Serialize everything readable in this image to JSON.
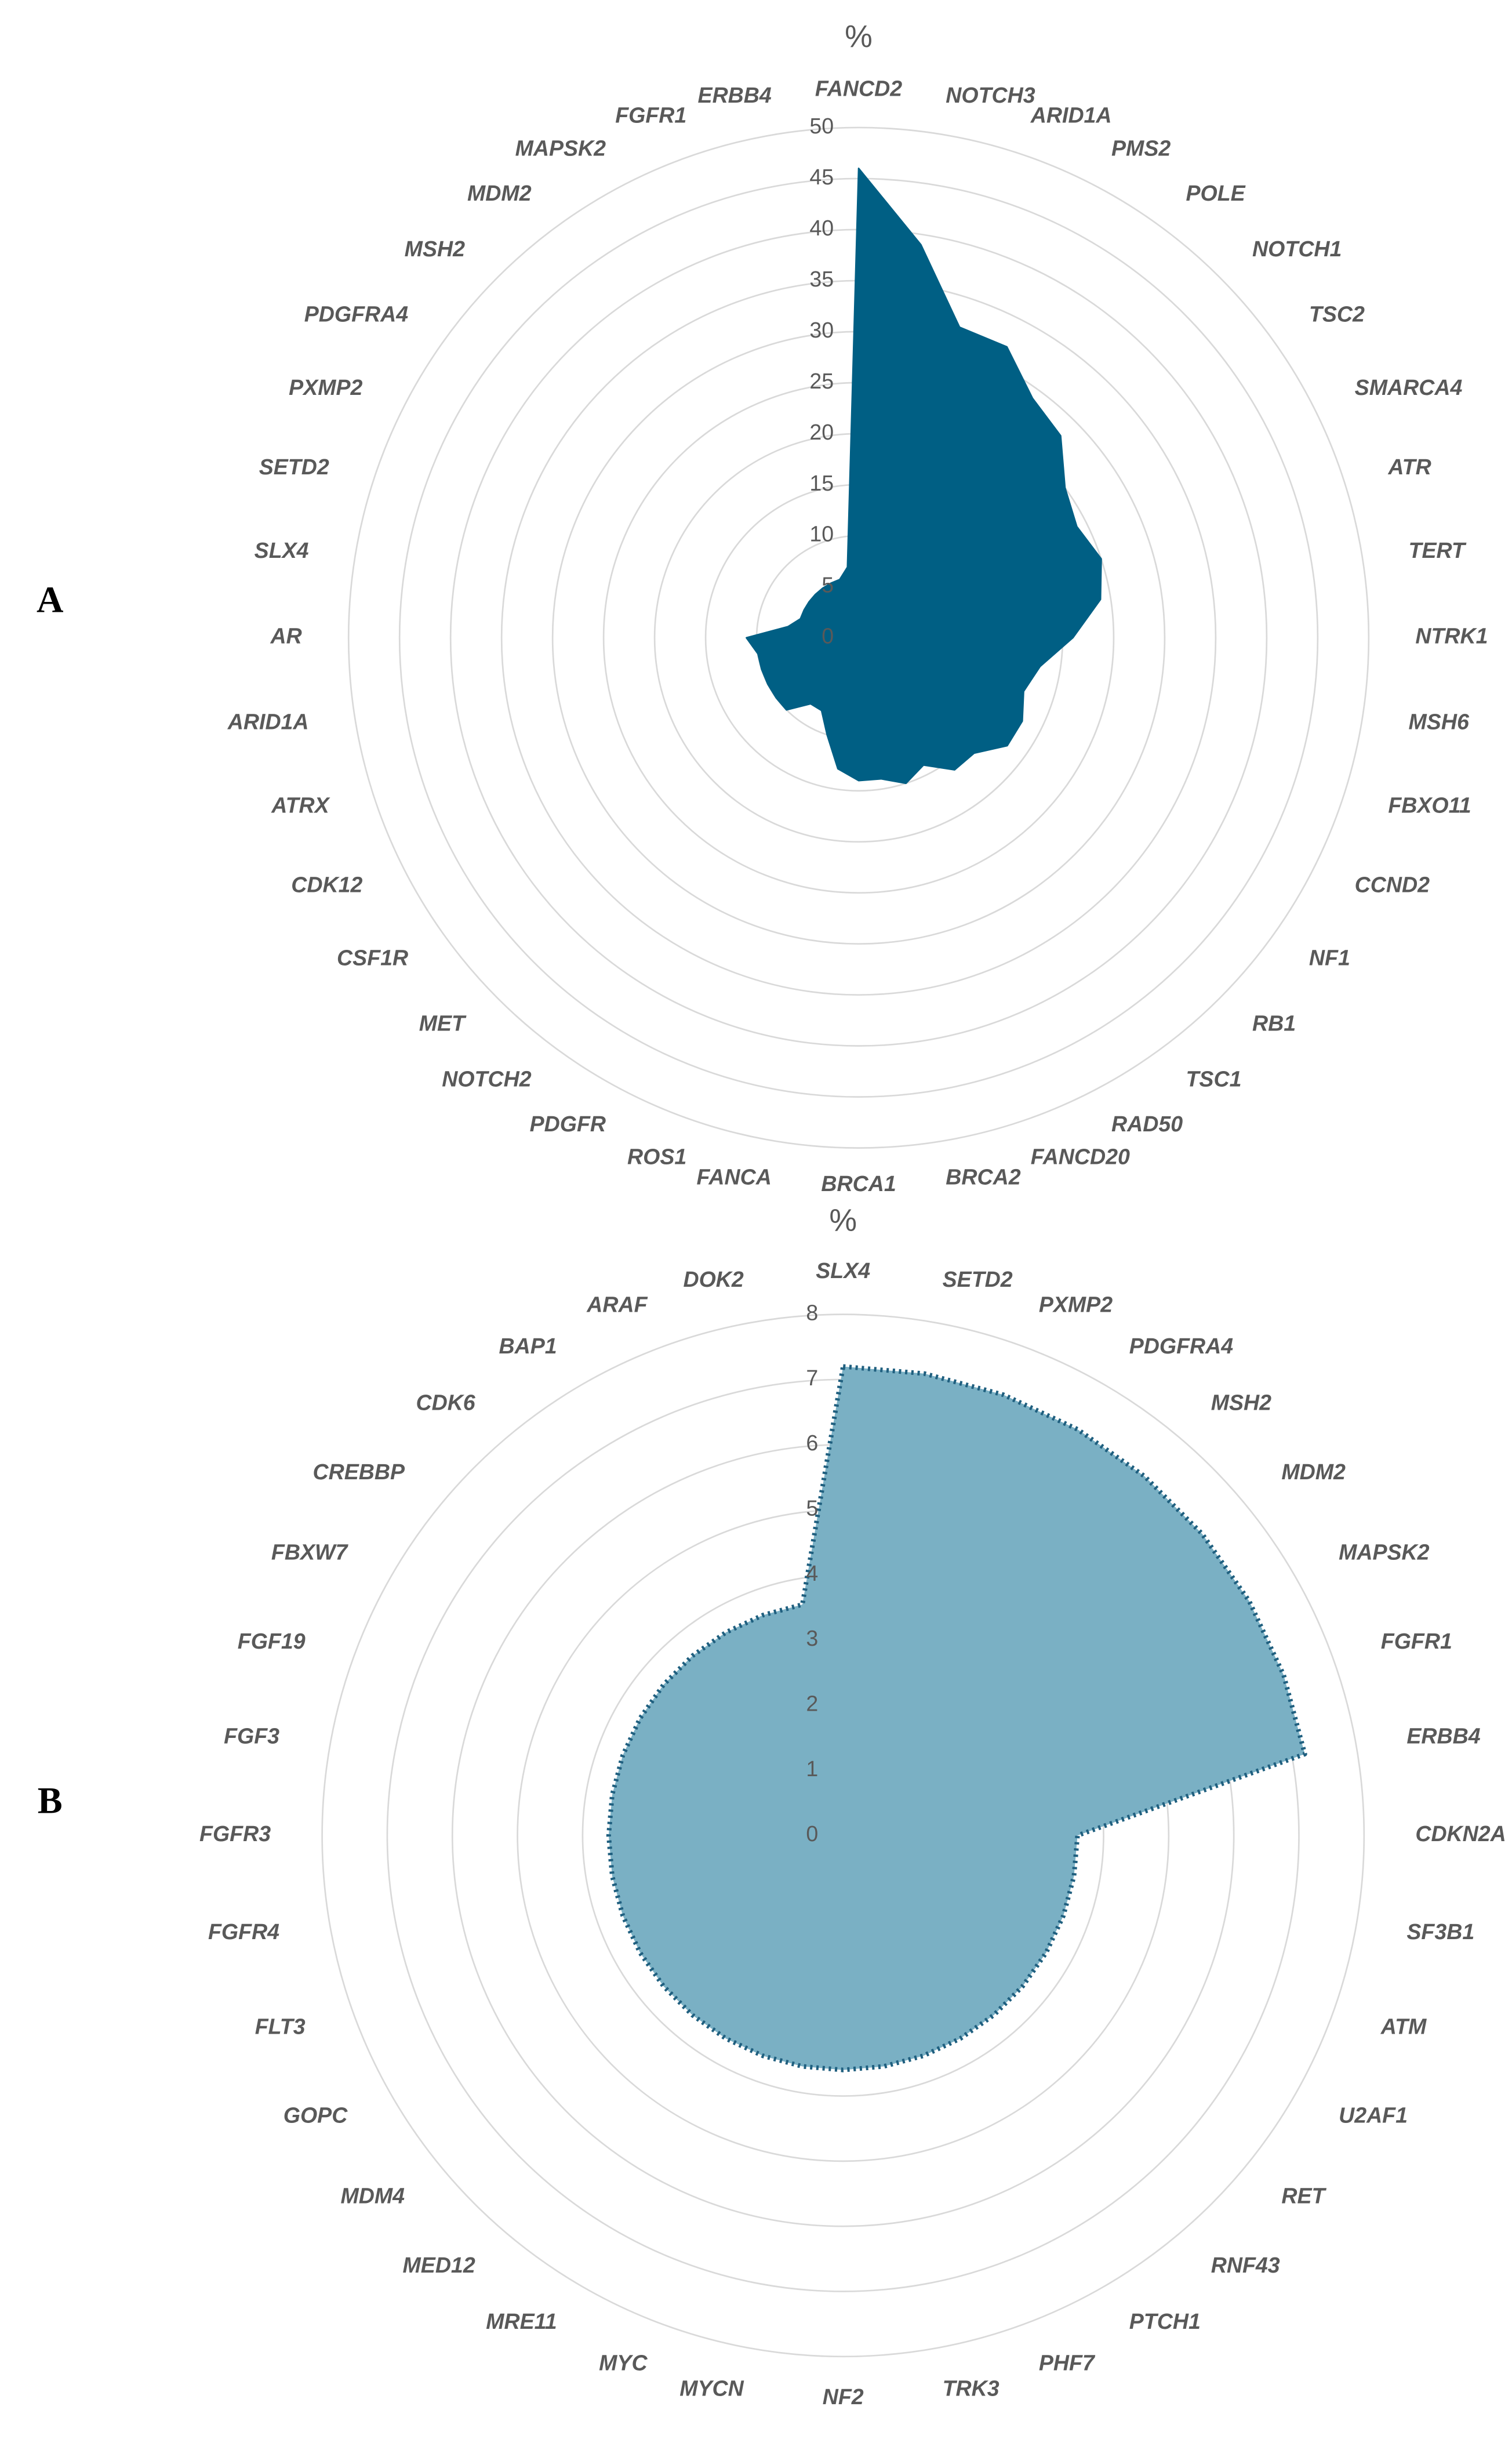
{
  "chart_data": [
    {
      "type": "radar",
      "panel": "A",
      "axis_label": "%",
      "categories": [
        "FANCD2",
        "NOTCH3",
        "ARID1A",
        "PMS2",
        "POLE",
        "NOTCH1",
        "TSC2",
        "SMARCA4",
        "ATR",
        "TERT",
        "NTRK1",
        "MSH6",
        "FBXO11",
        "CCND2",
        "NF1",
        "RB1",
        "TSC1",
        "RAD50",
        "FANCD20",
        "BRCA2",
        "BRCA1",
        "FANCA",
        "ROS1",
        "PDGFR",
        "NOTCH2",
        "MET",
        "CSF1R",
        "CDK12",
        "ATRX",
        "ARID1A",
        "AR",
        "SLX4",
        "SETD2",
        "PXMP2",
        "PDGFRA4",
        "MSH2",
        "MDM2",
        "MAPSK2",
        "FGFR1",
        "ERBB4"
      ],
      "values": [
        46,
        39,
        32,
        32,
        29,
        28,
        25,
        24,
        25,
        24,
        21,
        18,
        17,
        18,
        18,
        16,
        16,
        14,
        15,
        14,
        14,
        13,
        10,
        8,
        8,
        10,
        10,
        10,
        10,
        10,
        11,
        7,
        6,
        6,
        6,
        6,
        6,
        6,
        6,
        7
      ],
      "color": "#005f84",
      "border_color": "#005f84",
      "border_style": "solid",
      "ylim": [
        0,
        50
      ],
      "yticks": [
        0,
        5,
        10,
        15,
        20,
        25,
        30,
        35,
        40,
        45,
        50
      ],
      "grid": true
    },
    {
      "type": "radar",
      "panel": "B",
      "axis_label": "%",
      "categories": [
        "SLX4",
        "SETD2",
        "PXMP2",
        "PDGFRA4",
        "MSH2",
        "MDM2",
        "MAPSK2",
        "FGFR1",
        "ERBB4",
        "CDKN2A",
        "SF3B1",
        "ATM",
        "U2AF1",
        "RET",
        "RNF43",
        "PTCH1",
        "PHF7",
        "TRK3",
        "NF2",
        "MYCN",
        "MYC",
        "MRE11",
        "MED12",
        "MDM4",
        "GOPC",
        "FLT3",
        "FGFR4",
        "FGFR3",
        "FGF3",
        "FGF19",
        "FBXW7",
        "CREBBP",
        "CDK6",
        "BAP1",
        "ARAF",
        "DOK2"
      ],
      "values": [
        7.2,
        7.2,
        7.2,
        7.2,
        7.2,
        7.2,
        7.2,
        7.2,
        7.2,
        3.6,
        3.6,
        3.6,
        3.6,
        3.6,
        3.6,
        3.6,
        3.6,
        3.6,
        3.6,
        3.6,
        3.6,
        3.6,
        3.6,
        3.6,
        3.6,
        3.6,
        3.6,
        3.6,
        3.6,
        3.6,
        3.6,
        3.6,
        3.6,
        3.6,
        3.6,
        3.6
      ],
      "color": "#7ab0c4",
      "border_color": "#1f5f7f",
      "border_style": "dotted",
      "ylim": [
        0,
        8
      ],
      "yticks": [
        0,
        1,
        2,
        3,
        4,
        5,
        6,
        7,
        8
      ],
      "grid": true
    }
  ]
}
